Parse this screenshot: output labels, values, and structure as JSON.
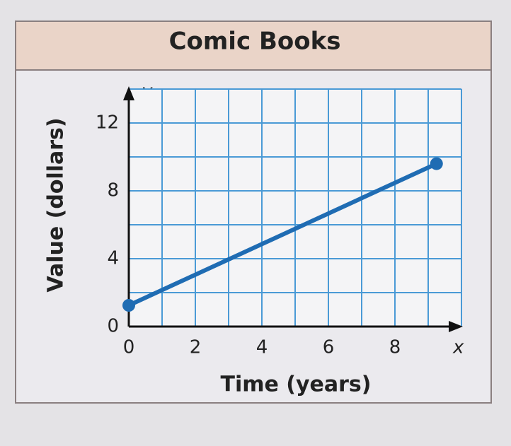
{
  "chart_data": {
    "type": "line",
    "title": "Comic Books",
    "x_label": "Time (years)",
    "y_label": "Value (dollars)",
    "x_axis_name": "x",
    "y_axis_name": "y",
    "x": [
      0,
      9.25
    ],
    "values": [
      1.25,
      9.6
    ],
    "color": "#1f6cb3",
    "xlim": [
      0,
      10
    ],
    "ylim": [
      0,
      14
    ],
    "xticks": [
      0,
      2,
      4,
      6,
      8
    ],
    "yticks": [
      0,
      4,
      8,
      12
    ],
    "grid": true,
    "grid_color": "#4a9ad6",
    "xgrid": [
      1,
      2,
      3,
      4,
      5,
      6,
      7,
      8,
      9,
      10
    ],
    "ygrid": [
      2,
      4,
      6,
      8,
      10,
      12,
      14
    ]
  }
}
